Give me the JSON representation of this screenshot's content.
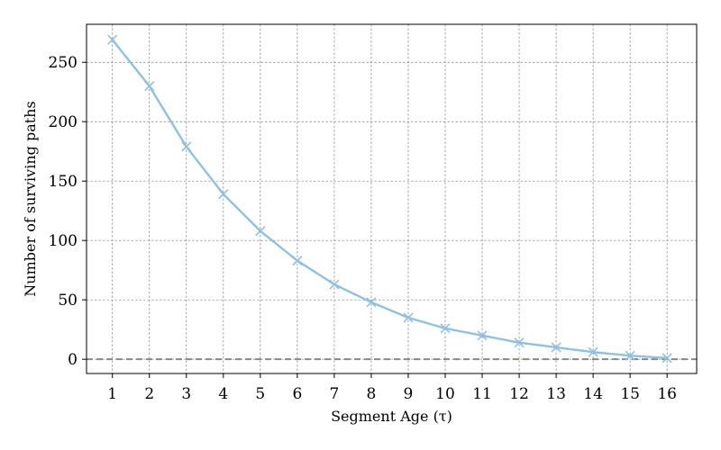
{
  "chart_data": {
    "type": "line",
    "title": "",
    "xlabel": "Segment Age (τ)",
    "ylabel": "Number of surviving paths",
    "x": [
      1,
      2,
      3,
      4,
      5,
      6,
      7,
      8,
      9,
      10,
      11,
      12,
      13,
      14,
      15,
      16
    ],
    "series": [
      {
        "name": "",
        "values": [
          269,
          230,
          179,
          139,
          108,
          83,
          63,
          48,
          35,
          26,
          20,
          14,
          10,
          6,
          3,
          1
        ],
        "color": "#8ec1e2",
        "marker": "x"
      }
    ],
    "xticks": [
      "1",
      "2",
      "3",
      "4",
      "5",
      "6",
      "7",
      "8",
      "9",
      "10",
      "11",
      "12",
      "13",
      "14",
      "15",
      "16"
    ],
    "yticks": [
      "0",
      "50",
      "100",
      "150",
      "200",
      "250"
    ],
    "xlim": [
      0.3,
      16.8
    ],
    "ylim": [
      -12,
      282
    ],
    "grid": true,
    "reference_line": {
      "y": 0,
      "style": "dashed",
      "color": "#888888"
    }
  }
}
